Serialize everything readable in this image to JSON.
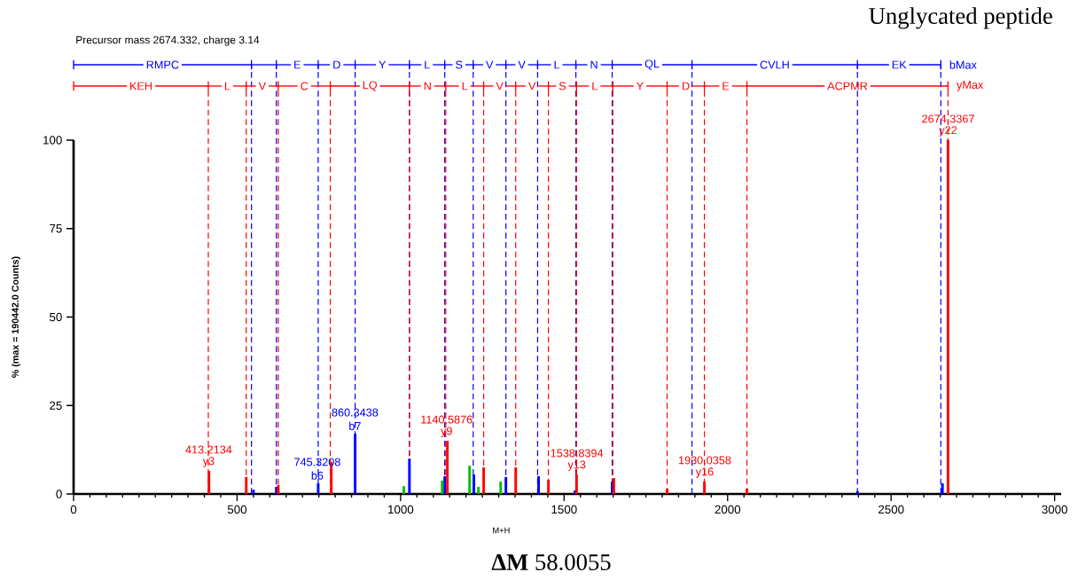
{
  "chart_data": {
    "type": "bar",
    "title": "Unglycated peptide",
    "subtitle": "Precursor mass 2674.332, charge 3.14",
    "xlabel": "M+H",
    "ylabel": "% (max = 190442.0 Counts)",
    "xlim": [
      0,
      3020
    ],
    "ylim": [
      0,
      100
    ],
    "xticks": [
      0,
      500,
      1000,
      1500,
      2000,
      2500,
      3000
    ],
    "yticks": [
      0,
      25,
      50,
      75,
      100
    ],
    "series": [
      {
        "color": "#0000ff",
        "x": [
          550,
          620,
          748,
          861,
          1027,
          1135,
          1224,
          1322,
          1422,
          1533,
          1647,
          2397,
          2657
        ],
        "values": [
          1.2,
          2,
          3,
          17,
          10,
          5,
          5.5,
          4.8,
          5,
          1,
          3.5,
          0.8,
          3
        ]
      },
      {
        "color": "#ff0000",
        "x": [
          414,
          528,
          626,
          788,
          1143,
          1254,
          1352,
          1452,
          1538,
          1652,
          1815,
          1929,
          2059,
          2674
        ],
        "values": [
          6.5,
          4.8,
          2.5,
          9,
          15,
          7.5,
          7.5,
          4,
          5.5,
          4.5,
          1.5,
          3.5,
          1.5,
          100
        ]
      },
      {
        "color": "#00c000",
        "x": [
          1010,
          1127,
          1211,
          1238,
          1306
        ],
        "values": [
          2.2,
          3.8,
          8,
          2,
          3.5
        ]
      }
    ],
    "ref_lines": [
      {
        "axis": "x",
        "value": 544,
        "label": "RMPC",
        "color": "#0000ff",
        "line_style": "dashed"
      },
      {
        "axis": "x",
        "value": 620,
        "color": "#0000ff",
        "line_style": "dashed"
      },
      {
        "axis": "x",
        "value": 748,
        "label": "E",
        "color": "#0000ff",
        "line_style": "dashed"
      },
      {
        "axis": "x",
        "value": 861,
        "label": "D",
        "color": "#0000ff",
        "line_style": "dashed"
      },
      {
        "axis": "x",
        "value": 1027,
        "label": "Y",
        "color": "#0000ff",
        "line_style": "dashed"
      },
      {
        "axis": "x",
        "value": 1135,
        "label": "L",
        "color": "#0000ff",
        "line_style": "dashed"
      },
      {
        "axis": "x",
        "value": 1222,
        "label": "S",
        "color": "#0000ff",
        "line_style": "dashed"
      },
      {
        "axis": "x",
        "value": 1322,
        "label": "V",
        "color": "#0000ff",
        "line_style": "dashed"
      },
      {
        "axis": "x",
        "value": 1419,
        "label": "V",
        "color": "#0000ff",
        "line_style": "dashed"
      },
      {
        "axis": "x",
        "value": 1536,
        "label": "L",
        "color": "#0000ff",
        "line_style": "dashed"
      },
      {
        "axis": "x",
        "value": 1647,
        "label": "N",
        "color": "#0000ff",
        "line_style": "dashed"
      },
      {
        "axis": "x",
        "value": 1891,
        "label": "QL",
        "color": "#0000ff",
        "line_style": "dashed"
      },
      {
        "axis": "x",
        "value": 2397,
        "label": "CVLH",
        "color": "#0000ff",
        "line_style": "dashed"
      },
      {
        "axis": "x",
        "value": 2652,
        "label": "EK",
        "color": "#0000ff",
        "line_style": "dashed"
      },
      {
        "axis": "x",
        "value": 412,
        "label": "KEH",
        "color": "#ff0000",
        "line_style": "dashed"
      },
      {
        "axis": "x",
        "value": 528,
        "label": "L",
        "color": "#ff0000",
        "line_style": "dashed"
      },
      {
        "axis": "x",
        "value": 626,
        "label": "V",
        "color": "#ff0000",
        "line_style": "dashed"
      },
      {
        "axis": "x",
        "value": 785,
        "label": "C",
        "color": "#ff0000",
        "line_style": "dashed"
      },
      {
        "axis": "x",
        "value": 1027,
        "label": "LQ",
        "color": "#ff0000",
        "line_style": "dashed"
      },
      {
        "axis": "x",
        "value": 1138,
        "label": "N",
        "color": "#ff0000",
        "line_style": "dashed"
      },
      {
        "axis": "x",
        "value": 1254,
        "label": "L",
        "color": "#ff0000",
        "line_style": "dashed"
      },
      {
        "axis": "x",
        "value": 1352,
        "label": "V",
        "color": "#ff0000",
        "line_style": "dashed"
      },
      {
        "axis": "x",
        "value": 1452,
        "label": "V",
        "color": "#ff0000",
        "line_style": "dashed"
      },
      {
        "axis": "x",
        "value": 1538,
        "label": "S",
        "color": "#ff0000",
        "line_style": "dashed"
      },
      {
        "axis": "x",
        "value": 1649,
        "label": "L",
        "color": "#ff0000",
        "line_style": "dashed"
      },
      {
        "axis": "x",
        "value": 1815,
        "label": "Y",
        "color": "#ff0000",
        "line_style": "dashed"
      },
      {
        "axis": "x",
        "value": 1929,
        "label": "D",
        "color": "#ff0000",
        "line_style": "dashed"
      },
      {
        "axis": "x",
        "value": 2059,
        "label": "E",
        "color": "#ff0000",
        "line_style": "dashed"
      },
      {
        "axis": "x",
        "value": 2674,
        "label": "ACPMR",
        "color": "#ff0000",
        "line_style": "dashed"
      }
    ],
    "annotations": [
      "**ΔM** 58.0055",
      "bMax",
      "yMax",
      {
        "text": "413.2134",
        "x": 413.2134,
        "y": 6.5
      },
      {
        "text": "y3",
        "x": 413.2134,
        "y": 6.5
      },
      {
        "text": "745.3208",
        "x": 745.3208,
        "y": 3
      },
      {
        "text": "b6",
        "x": 745.3208,
        "y": 3
      },
      {
        "text": "860.3438",
        "x": 860.3438,
        "y": 17
      },
      {
        "text": "b7",
        "x": 860.3438,
        "y": 17
      },
      {
        "text": "1140.5876",
        "x": 1140.5876,
        "y": 15
      },
      {
        "text": "y9",
        "x": 1140.5876,
        "y": 15
      },
      {
        "text": "1538.8394",
        "x": 1538.8394,
        "y": 5.5
      },
      {
        "text": "y13",
        "x": 1538.8394,
        "y": 5.5
      },
      {
        "text": "1930.0358",
        "x": 1930.0358,
        "y": 3.5
      },
      {
        "text": "y16",
        "x": 1930.0358,
        "y": 3.5
      },
      {
        "text": "2674.3367",
        "x": 2674.3367,
        "y": 100
      },
      {
        "text": "y22",
        "x": 2674.3367,
        "y": 100
      }
    ]
  }
}
